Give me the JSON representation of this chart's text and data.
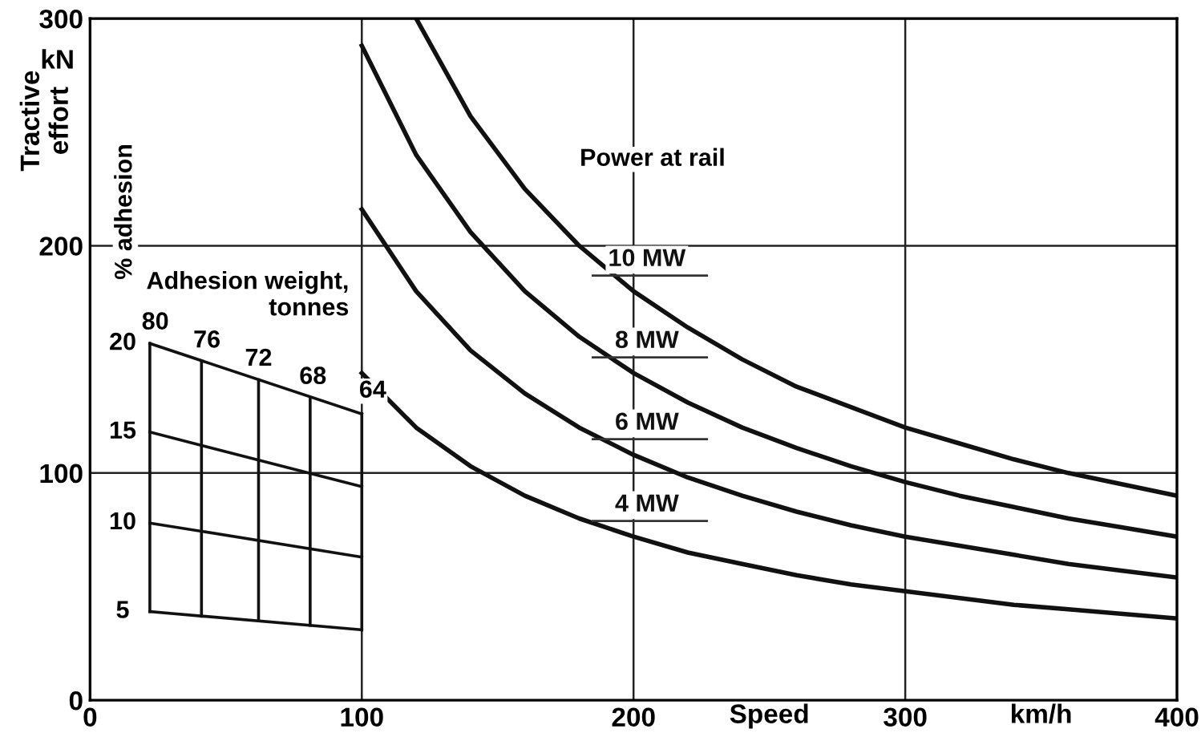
{
  "chart_data": {
    "type": "line",
    "ylabel": "Tractive effort",
    "xlabel": "Speed",
    "xlim": [
      0,
      400
    ],
    "ylim": [
      0,
      300
    ],
    "xticks": [
      0,
      100,
      200,
      300,
      400
    ],
    "yticks": [
      0,
      100,
      200,
      300
    ],
    "grid": true,
    "legend": false,
    "series": [
      {
        "name": "10 MW",
        "color": "#111111",
        "x": [
          120,
          140,
          160,
          180,
          200,
          220,
          240,
          260,
          280,
          300,
          320,
          340,
          360,
          380,
          400
        ],
        "values": [
          300,
          257,
          225,
          200,
          180,
          164,
          150,
          138,
          129,
          120,
          113,
          106,
          100,
          95,
          90
        ]
      },
      {
        "name": "8 MW",
        "color": "#111111",
        "x": [
          100,
          120,
          140,
          160,
          180,
          200,
          220,
          240,
          260,
          280,
          300,
          320,
          340,
          360,
          380,
          400
        ],
        "values": [
          288,
          240,
          206,
          180,
          160,
          144,
          131,
          120,
          111,
          103,
          96,
          90,
          85,
          80,
          76,
          72
        ]
      },
      {
        "name": "6 MW",
        "color": "#111111",
        "x": [
          100,
          120,
          140,
          160,
          180,
          200,
          220,
          240,
          260,
          280,
          300,
          320,
          340,
          360,
          380,
          400
        ],
        "values": [
          216,
          180,
          154,
          135,
          120,
          108,
          98,
          90,
          83,
          77,
          72,
          68,
          64,
          60,
          57,
          54
        ]
      },
      {
        "name": "4 MW",
        "color": "#111111",
        "x": [
          100,
          120,
          140,
          160,
          180,
          200,
          220,
          240,
          260,
          280,
          300,
          320,
          340,
          360,
          380,
          400
        ],
        "values": [
          144,
          120,
          103,
          90,
          80,
          72,
          65,
          60,
          55,
          51,
          48,
          45,
          42,
          40,
          38,
          36
        ]
      },
      {
        "color": "#111111",
        "x": [
          22,
          100
        ],
        "values": [
          39,
          31
        ]
      },
      {
        "color": "#111111",
        "x": [
          22,
          100
        ],
        "values": [
          78,
          63
        ]
      },
      {
        "color": "#111111",
        "x": [
          22,
          100
        ],
        "values": [
          118,
          94
        ]
      },
      {
        "color": "#111111",
        "x": [
          22,
          100
        ],
        "values": [
          157,
          126
        ]
      },
      {
        "color": "#111111",
        "x": [
          22,
          22
        ],
        "values": [
          39,
          157
        ]
      },
      {
        "color": "#111111",
        "x": [
          41,
          41
        ],
        "values": [
          37,
          149
        ]
      },
      {
        "color": "#111111",
        "x": [
          62,
          62
        ],
        "values": [
          35,
          141
        ]
      },
      {
        "color": "#111111",
        "x": [
          81,
          81
        ],
        "values": [
          33,
          133
        ]
      },
      {
        "color": "#111111",
        "x": [
          100,
          100
        ],
        "values": [
          31,
          126
        ]
      }
    ],
    "annotations": [
      "kN",
      "km/h",
      "% adhesion",
      "Power at rail",
      "Adhesion weight,\ntonnes",
      "80",
      "76",
      "72",
      "68",
      "64",
      "20",
      "15",
      "10",
      "5"
    ]
  }
}
